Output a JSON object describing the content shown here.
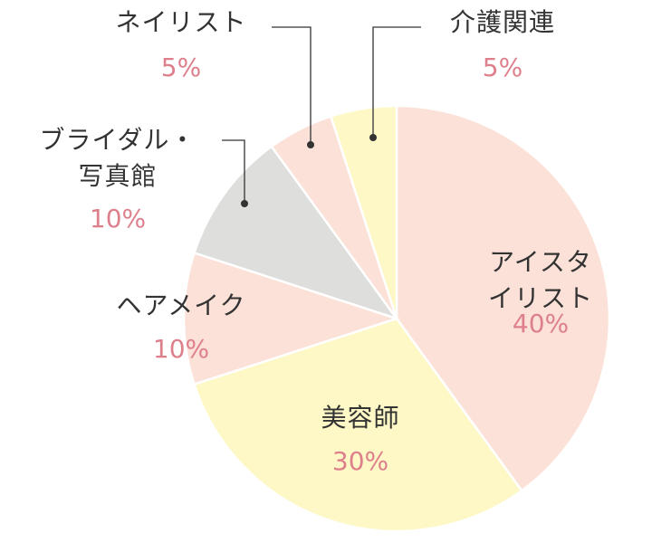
{
  "chart_data": {
    "type": "pie",
    "categories": [
      "アイスタイリスト",
      "美容師",
      "ヘアメイク",
      "ブライダル・\n写真館",
      "ネイリスト",
      "介護関連"
    ],
    "values": [
      40,
      30,
      10,
      10,
      5,
      5
    ],
    "value_labels": [
      "40%",
      "30%",
      "10%",
      "10%",
      "5%",
      "5%"
    ],
    "colors": [
      "#fbe1d7",
      "#fdf8c6",
      "#fbe1d7",
      "#dededd",
      "#fbe1d7",
      "#fdf8c6"
    ]
  }
}
